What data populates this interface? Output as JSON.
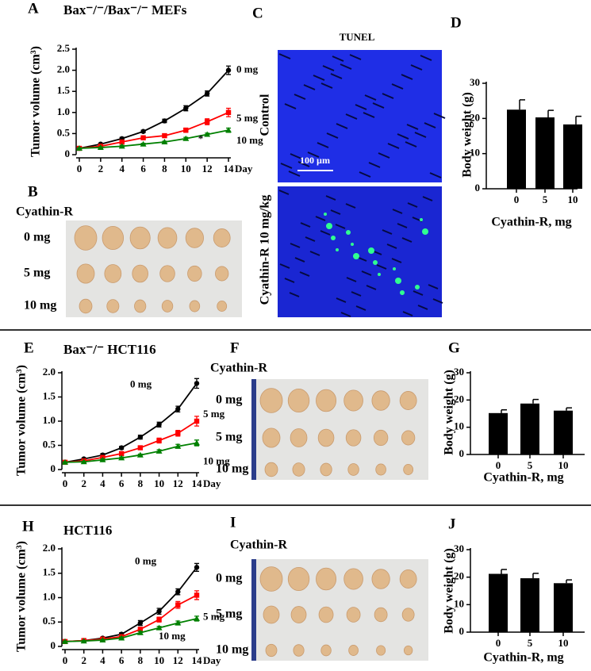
{
  "chart_data": [
    {
      "type": "line",
      "panel": "A",
      "title": "Bax⁻/⁻/Bax⁻/⁻ MEFs",
      "y_label": "Tumor volume (cm³)",
      "x_label": "Day",
      "x": [
        0,
        2,
        4,
        6,
        8,
        10,
        12,
        14
      ],
      "xlim": [
        0,
        14
      ],
      "xticks": [
        0,
        2,
        4,
        6,
        8,
        10,
        12,
        14
      ],
      "ylim": [
        0,
        2.5
      ],
      "yticks": [
        0,
        0.5,
        {
          "value": 1,
          "label": "1.0"
        },
        1.5,
        {
          "value": 2,
          "label": "2.0"
        },
        2.5
      ],
      "annotation": "*",
      "series": [
        {
          "name": "0 mg",
          "color": "#000000",
          "marker": "circle",
          "values": [
            0.15,
            0.25,
            0.38,
            0.55,
            0.8,
            1.1,
            1.45,
            2.0
          ],
          "errors": [
            0.02,
            0.02,
            0.03,
            0.03,
            0.04,
            0.06,
            0.06,
            0.1
          ]
        },
        {
          "name": "5 mg",
          "color": "#ff0000",
          "marker": "square",
          "values": [
            0.15,
            0.2,
            0.3,
            0.4,
            0.45,
            0.58,
            0.78,
            1.0
          ],
          "errors": [
            0.02,
            0.02,
            0.02,
            0.03,
            0.04,
            0.05,
            0.07,
            0.1
          ]
        },
        {
          "name": "10 mg",
          "color": "#008000",
          "marker": "triangle",
          "values": [
            0.15,
            0.17,
            0.2,
            0.25,
            0.3,
            0.38,
            0.48,
            0.58
          ],
          "errors": [
            0.01,
            0.01,
            0.02,
            0.02,
            0.02,
            0.03,
            0.03,
            0.05
          ]
        }
      ]
    },
    {
      "type": "bar",
      "panel": "D",
      "y_label": "Body weight (g)",
      "x_label": "Cyathin-R, mg",
      "categories": [
        "0",
        "5",
        "10"
      ],
      "values": [
        22.5,
        20.3,
        18.3
      ],
      "errors": [
        2.8,
        2.0,
        2.3
      ],
      "color": "#000000",
      "ylim": [
        0,
        30
      ],
      "yticks": [
        0,
        10,
        20,
        30
      ]
    },
    {
      "type": "line",
      "panel": "E",
      "title": "Bax⁻/⁻ HCT116",
      "y_label": "Tumor volume (cm³)",
      "x_label": "Day",
      "x": [
        0,
        2,
        4,
        6,
        8,
        10,
        12,
        14
      ],
      "xlim": [
        0,
        14
      ],
      "xticks": [
        0,
        2,
        4,
        6,
        8,
        10,
        12,
        14
      ],
      "ylim": [
        0,
        2
      ],
      "yticks": [
        0,
        0.5,
        {
          "value": 1,
          "label": "1.0"
        },
        1.5,
        {
          "value": 2,
          "label": "2.0"
        }
      ],
      "series": [
        {
          "name": "0 mg",
          "color": "#000000",
          "marker": "circle",
          "values": [
            0.15,
            0.22,
            0.3,
            0.45,
            0.67,
            0.93,
            1.25,
            1.78
          ],
          "errors": [
            0.02,
            0.02,
            0.03,
            0.03,
            0.04,
            0.05,
            0.06,
            0.1
          ]
        },
        {
          "name": "5 mg",
          "color": "#ff0000",
          "marker": "square",
          "values": [
            0.15,
            0.18,
            0.25,
            0.33,
            0.45,
            0.6,
            0.75,
            1.0
          ],
          "errors": [
            0.02,
            0.02,
            0.02,
            0.03,
            0.03,
            0.05,
            0.06,
            0.1
          ]
        },
        {
          "name": "10 mg",
          "color": "#008000",
          "marker": "triangle",
          "values": [
            0.15,
            0.16,
            0.2,
            0.24,
            0.3,
            0.38,
            0.48,
            0.55
          ],
          "errors": [
            0.01,
            0.01,
            0.02,
            0.02,
            0.02,
            0.03,
            0.04,
            0.06
          ]
        }
      ]
    },
    {
      "type": "bar",
      "panel": "G",
      "y_label": "Body weight (g)",
      "x_label": "Cyathin-R, mg",
      "categories": [
        "0",
        "5",
        "10"
      ],
      "values": [
        15.2,
        18.7,
        16.1
      ],
      "errors": [
        1.2,
        1.5,
        1.0
      ],
      "color": "#000000",
      "ylim": [
        0,
        30
      ],
      "yticks": [
        0,
        10,
        20,
        30
      ]
    },
    {
      "type": "line",
      "panel": "H",
      "title": "HCT116",
      "y_label": "Tumor volume (cm³)",
      "x_label": "Day",
      "x": [
        0,
        2,
        4,
        6,
        8,
        10,
        12,
        14
      ],
      "xlim": [
        0,
        14
      ],
      "xticks": [
        0,
        2,
        4,
        6,
        8,
        10,
        12,
        14
      ],
      "ylim": [
        0,
        2
      ],
      "yticks": [
        0,
        0.5,
        {
          "value": 1,
          "label": "1.0"
        },
        1.5,
        {
          "value": 2,
          "label": "2.0"
        }
      ],
      "series": [
        {
          "name": "0 mg",
          "color": "#000000",
          "marker": "circle",
          "values": [
            0.1,
            0.12,
            0.17,
            0.25,
            0.48,
            0.72,
            1.12,
            1.62
          ],
          "errors": [
            0.01,
            0.02,
            0.02,
            0.03,
            0.05,
            0.06,
            0.06,
            0.08
          ]
        },
        {
          "name": "5 mg",
          "color": "#ff0000",
          "marker": "square",
          "values": [
            0.1,
            0.12,
            0.15,
            0.2,
            0.35,
            0.55,
            0.85,
            1.05
          ],
          "errors": [
            0.01,
            0.01,
            0.02,
            0.02,
            0.04,
            0.05,
            0.07,
            0.09
          ]
        },
        {
          "name": "10 mg",
          "color": "#008000",
          "marker": "triangle",
          "values": [
            0.1,
            0.11,
            0.13,
            0.17,
            0.28,
            0.38,
            0.48,
            0.57
          ],
          "errors": [
            0.01,
            0.01,
            0.01,
            0.02,
            0.03,
            0.03,
            0.04,
            0.05
          ]
        }
      ]
    },
    {
      "type": "bar",
      "panel": "J",
      "y_label": "Body weight (g)",
      "x_label": "Cyathin-R, mg",
      "categories": [
        "0",
        "5",
        "10"
      ],
      "values": [
        21.2,
        19.6,
        17.8
      ],
      "errors": [
        1.6,
        1.8,
        1.2
      ],
      "color": "#000000",
      "ylim": [
        0,
        30
      ],
      "yticks": [
        0,
        10,
        20,
        30
      ]
    }
  ],
  "images": [
    {
      "panel": "B",
      "title": "Cyathin-R",
      "rows": [
        "0 mg",
        "5 mg",
        "10 mg"
      ]
    },
    {
      "panel": "C",
      "title": "TUNEL",
      "rows": [
        "Control",
        "Cyathin-R  10 mg/kg"
      ],
      "scale_bar": "100 µm"
    },
    {
      "panel": "F",
      "title": "Cyathin-R",
      "rows": [
        "0 mg",
        "5 mg",
        "10 mg"
      ]
    },
    {
      "panel": "I",
      "title": "Cyathin-R",
      "rows": [
        "0 mg",
        "5 mg",
        "10 mg"
      ]
    }
  ]
}
